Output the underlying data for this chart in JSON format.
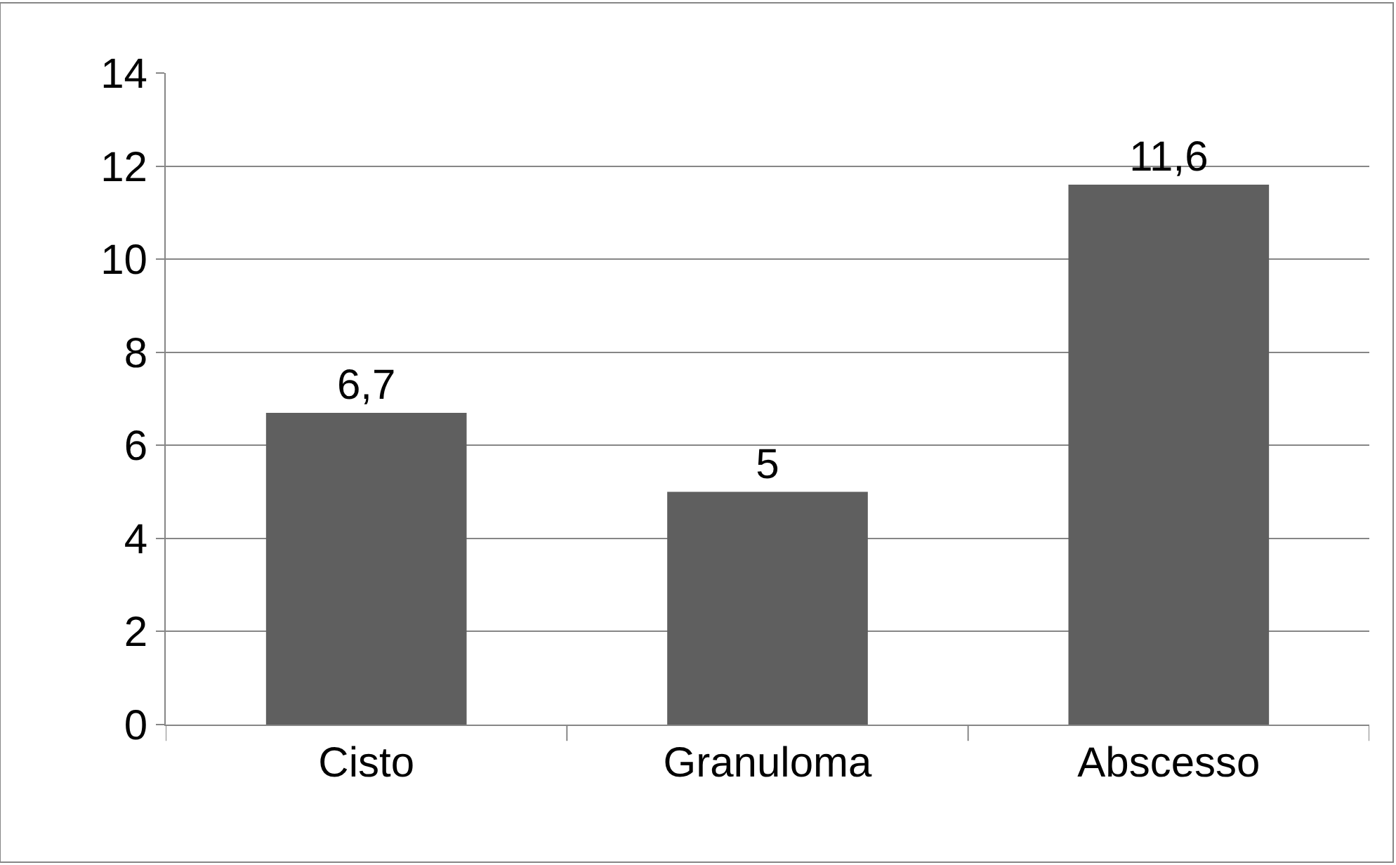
{
  "chart_data": {
    "type": "bar",
    "categories": [
      "Cisto",
      "Granuloma",
      "Abscesso"
    ],
    "values": [
      6.7,
      5,
      11.6
    ],
    "value_labels": [
      "6,7",
      "5",
      "11,6"
    ],
    "color": "#5f5f5f",
    "ylim": [
      0,
      14
    ],
    "yticks": [
      0,
      2,
      4,
      6,
      8,
      10,
      12,
      14
    ],
    "grid": "y",
    "legend": false
  }
}
